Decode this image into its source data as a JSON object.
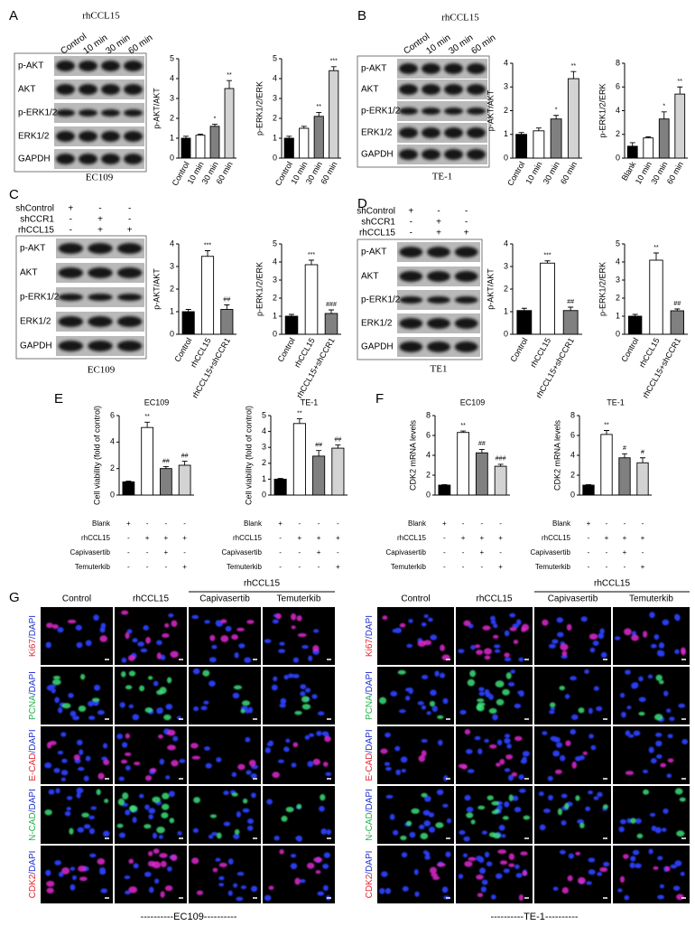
{
  "panel_letters": [
    "A",
    "B",
    "C",
    "D",
    "E",
    "F",
    "G"
  ],
  "blots": [
    {
      "treatment_header": "rhCCL15",
      "lanes": [
        "Control",
        "10 min",
        "30 min",
        "60 min"
      ],
      "bands": [
        "p-AKT",
        "AKT",
        "p-ERK1/2",
        "ERK1/2",
        "GAPDH"
      ],
      "cell_line": "EC109"
    },
    {
      "treatment_header": "rhCCL15",
      "lanes": [
        "Control",
        "10 min",
        "30 min",
        "60 min"
      ],
      "bands": [
        "p-AKT",
        "AKT",
        "p-ERK1/2",
        "ERK1/2",
        "GAPDH"
      ],
      "cell_line": "TE-1"
    },
    {
      "conditions": [
        {
          "name": "shControl",
          "signs": [
            "+",
            "-",
            "-"
          ]
        },
        {
          "name": "shCCR1",
          "signs": [
            "-",
            "+",
            "-"
          ]
        },
        {
          "name": "rhCCL15",
          "signs": [
            "-",
            "+",
            "+"
          ]
        }
      ],
      "bands": [
        "p-AKT",
        "AKT",
        "p-ERK1/2",
        "ERK1/2",
        "GAPDH"
      ],
      "cell_line": "EC109"
    },
    {
      "conditions": [
        {
          "name": "shControl",
          "signs": [
            "+",
            "-",
            "-"
          ]
        },
        {
          "name": "shCCR1",
          "signs": [
            "-",
            "+",
            "-"
          ]
        },
        {
          "name": "rhCCL15",
          "signs": [
            "-",
            "+",
            "+"
          ]
        }
      ],
      "bands": [
        "p-AKT",
        "AKT",
        "p-ERK1/2",
        "ERK1/2",
        "GAPDH"
      ],
      "cell_line": "TE1"
    }
  ],
  "chart_data": [
    {
      "type": "bar",
      "y_label": "p-AKT/AKT",
      "categories": [
        "Control",
        "10 min",
        "30 min",
        "60 min"
      ],
      "values": [
        1,
        1.15,
        1.6,
        3.5
      ],
      "errors": [
        0.1,
        0.05,
        0.1,
        0.4
      ],
      "colors": [
        "#000000",
        "#ffffff",
        "#808080",
        "#d3d3d3"
      ],
      "ylim": [
        0,
        5
      ],
      "yticks": [
        0,
        1,
        2,
        3,
        4,
        5
      ],
      "annotations": [
        {
          "index": 2,
          "text": "*"
        },
        {
          "index": 3,
          "text": "**"
        }
      ]
    },
    {
      "type": "bar",
      "y_label": "p-ERK1/2/ERK",
      "categories": [
        "Control",
        "10 min",
        "30 min",
        "60 min"
      ],
      "values": [
        1,
        1.5,
        2.1,
        4.4
      ],
      "errors": [
        0.1,
        0.1,
        0.2,
        0.2
      ],
      "colors": [
        "#000000",
        "#ffffff",
        "#808080",
        "#d3d3d3"
      ],
      "ylim": [
        0,
        5
      ],
      "yticks": [
        0,
        1,
        2,
        3,
        4,
        5
      ],
      "annotations": [
        {
          "index": 2,
          "text": "**"
        },
        {
          "index": 3,
          "text": "***"
        }
      ]
    },
    {
      "type": "bar",
      "y_label": "p-AKT/AKT",
      "categories": [
        "Control",
        "10 min",
        "30 min",
        "60 min"
      ],
      "values": [
        1,
        1.15,
        1.65,
        3.35
      ],
      "errors": [
        0.08,
        0.12,
        0.15,
        0.3
      ],
      "colors": [
        "#000000",
        "#ffffff",
        "#808080",
        "#d3d3d3"
      ],
      "ylim": [
        0,
        4
      ],
      "yticks": [
        0,
        1,
        2,
        3,
        4
      ],
      "annotations": [
        {
          "index": 2,
          "text": "*"
        },
        {
          "index": 3,
          "text": "**"
        }
      ]
    },
    {
      "type": "bar",
      "y_label": "p-ERK1/2/ERK",
      "categories": [
        "Blank",
        "10 min",
        "30 min",
        "60 min"
      ],
      "values": [
        1,
        1.7,
        3.3,
        5.4
      ],
      "errors": [
        0.3,
        0.1,
        0.6,
        0.6
      ],
      "colors": [
        "#000000",
        "#ffffff",
        "#808080",
        "#d3d3d3"
      ],
      "ylim": [
        0,
        8
      ],
      "yticks": [
        0,
        2,
        4,
        6,
        8
      ],
      "annotations": [
        {
          "index": 2,
          "text": "*"
        },
        {
          "index": 3,
          "text": "**"
        }
      ]
    },
    {
      "type": "bar",
      "y_label": "p-AKT/AKT",
      "categories": [
        "Control",
        "rhCCL15",
        "rhCCL15+shCCR1"
      ],
      "values": [
        1,
        3.45,
        1.1
      ],
      "errors": [
        0.1,
        0.25,
        0.2
      ],
      "colors": [
        "#000000",
        "#ffffff",
        "#808080"
      ],
      "ylim": [
        0,
        4
      ],
      "yticks": [
        0,
        1,
        2,
        3,
        4
      ],
      "annotations": [
        {
          "index": 1,
          "text": "***"
        },
        {
          "index": 2,
          "text": "##"
        }
      ]
    },
    {
      "type": "bar",
      "y_label": "p-ERK1/2/ERK",
      "categories": [
        "Control",
        "rhCCL15",
        "rhCCL15+shCCR1"
      ],
      "values": [
        1,
        3.85,
        1.15
      ],
      "errors": [
        0.1,
        0.25,
        0.2
      ],
      "colors": [
        "#000000",
        "#ffffff",
        "#808080"
      ],
      "ylim": [
        0,
        5
      ],
      "yticks": [
        0,
        1,
        2,
        3,
        4,
        5
      ],
      "annotations": [
        {
          "index": 1,
          "text": "***"
        },
        {
          "index": 2,
          "text": "###"
        }
      ]
    },
    {
      "type": "bar",
      "y_label": "p-AKT/AKT",
      "categories": [
        "Control",
        "rhCCL15",
        "rhCCL15+shCCR1"
      ],
      "values": [
        1.05,
        3.15,
        1.05
      ],
      "errors": [
        0.1,
        0.1,
        0.15
      ],
      "colors": [
        "#000000",
        "#ffffff",
        "#808080"
      ],
      "ylim": [
        0,
        4
      ],
      "yticks": [
        0,
        1,
        2,
        3,
        4
      ],
      "annotations": [
        {
          "index": 1,
          "text": "***"
        },
        {
          "index": 2,
          "text": "##"
        }
      ]
    },
    {
      "type": "bar",
      "y_label": "p-ERK1/2/ERK",
      "categories": [
        "Control",
        "rhCCL15",
        "rhCCL15+shCCR1"
      ],
      "values": [
        1,
        4.1,
        1.3
      ],
      "errors": [
        0.1,
        0.4,
        0.1
      ],
      "colors": [
        "#000000",
        "#ffffff",
        "#808080"
      ],
      "ylim": [
        0,
        5
      ],
      "yticks": [
        0,
        1,
        2,
        3,
        4,
        5
      ],
      "annotations": [
        {
          "index": 1,
          "text": "**"
        },
        {
          "index": 2,
          "text": "##"
        }
      ]
    },
    {
      "type": "bar",
      "title": "EC109",
      "y_label": "Cell viability  (fold of control)",
      "values": [
        1,
        5.1,
        2.0,
        2.25
      ],
      "errors": [
        0.05,
        0.4,
        0.15,
        0.3
      ],
      "colors": [
        "#000000",
        "#ffffff",
        "#808080",
        "#d3d3d3"
      ],
      "ylim": [
        0,
        6
      ],
      "yticks": [
        0,
        2,
        4,
        6
      ],
      "annotations": [
        {
          "index": 1,
          "text": "**"
        },
        {
          "index": 2,
          "text": "##"
        },
        {
          "index": 3,
          "text": "##"
        }
      ],
      "treatments": [
        {
          "name": "Blank",
          "signs": [
            "+",
            "-",
            "-",
            "-"
          ]
        },
        {
          "name": "rhCCL15",
          "signs": [
            "-",
            "+",
            "+",
            "+"
          ]
        },
        {
          "name": "Capivasertib",
          "signs": [
            "-",
            "-",
            "+",
            "-"
          ]
        },
        {
          "name": "Temuterkib",
          "signs": [
            "-",
            "-",
            "-",
            "+"
          ]
        }
      ]
    },
    {
      "type": "bar",
      "title": "TE-1",
      "y_label": "Cell viability  (fold of control)",
      "values": [
        1,
        4.5,
        2.45,
        2.95
      ],
      "errors": [
        0.05,
        0.3,
        0.35,
        0.2
      ],
      "colors": [
        "#000000",
        "#ffffff",
        "#808080",
        "#d3d3d3"
      ],
      "ylim": [
        0,
        5
      ],
      "yticks": [
        0,
        1,
        2,
        3,
        4,
        5
      ],
      "annotations": [
        {
          "index": 1,
          "text": "**"
        },
        {
          "index": 2,
          "text": "##"
        },
        {
          "index": 3,
          "text": "##"
        }
      ],
      "treatments": [
        {
          "name": "Blank",
          "signs": [
            "+",
            "-",
            "-",
            "-"
          ]
        },
        {
          "name": "rhCCL15",
          "signs": [
            "-",
            "+",
            "+",
            "+"
          ]
        },
        {
          "name": "Capivasertib",
          "signs": [
            "-",
            "-",
            "+",
            "-"
          ]
        },
        {
          "name": "Temuterkib",
          "signs": [
            "-",
            "-",
            "-",
            "+"
          ]
        }
      ]
    },
    {
      "type": "bar",
      "title": "EC109",
      "y_label": "CDK2 mRNA levels",
      "values": [
        1,
        6.3,
        4.25,
        2.9
      ],
      "errors": [
        0.05,
        0.15,
        0.35,
        0.2
      ],
      "colors": [
        "#000000",
        "#ffffff",
        "#808080",
        "#d3d3d3"
      ],
      "ylim": [
        0,
        8
      ],
      "yticks": [
        0,
        2,
        4,
        6,
        8
      ],
      "annotations": [
        {
          "index": 1,
          "text": "**"
        },
        {
          "index": 2,
          "text": "##"
        },
        {
          "index": 3,
          "text": "###"
        }
      ],
      "treatments": [
        {
          "name": "Blank",
          "signs": [
            "+",
            "-",
            "-",
            "-"
          ]
        },
        {
          "name": "rhCCL15",
          "signs": [
            "-",
            "+",
            "+",
            "+"
          ]
        },
        {
          "name": "Capivasertib",
          "signs": [
            "-",
            "-",
            "+",
            "-"
          ]
        },
        {
          "name": "Temuterkib",
          "signs": [
            "-",
            "-",
            "-",
            "+"
          ]
        }
      ]
    },
    {
      "type": "bar",
      "title": "TE-1",
      "y_label": "CDK2 mRNA levels",
      "values": [
        1,
        6.1,
        3.75,
        3.25
      ],
      "errors": [
        0.05,
        0.4,
        0.4,
        0.5
      ],
      "colors": [
        "#000000",
        "#ffffff",
        "#808080",
        "#d3d3d3"
      ],
      "ylim": [
        0,
        8
      ],
      "yticks": [
        0,
        2,
        4,
        6,
        8
      ],
      "annotations": [
        {
          "index": 1,
          "text": "**"
        },
        {
          "index": 2,
          "text": "#"
        },
        {
          "index": 3,
          "text": "#"
        }
      ],
      "treatments": [
        {
          "name": "Blank",
          "signs": [
            "+",
            "-",
            "-",
            "-"
          ]
        },
        {
          "name": "rhCCL15",
          "signs": [
            "-",
            "+",
            "+",
            "+"
          ]
        },
        {
          "name": "Capivasertib",
          "signs": [
            "-",
            "-",
            "+",
            "-"
          ]
        },
        {
          "name": "Temuterkib",
          "signs": [
            "-",
            "-",
            "-",
            "+"
          ]
        }
      ]
    }
  ],
  "microscopy": {
    "group_header": "rhCCL15",
    "columns": [
      "Control",
      "rhCCL15",
      "Capivasertib",
      "Temuterkib"
    ],
    "stains": [
      {
        "marker": "Ki67",
        "marker_color": "#e3262f",
        "counterstain": "/DAPI"
      },
      {
        "marker": "PCNA",
        "marker_color": "#22b14c",
        "counterstain": "/DAPI"
      },
      {
        "marker": "E-CAD",
        "marker_color": "#e3262f",
        "counterstain": "/DAPI"
      },
      {
        "marker": "N-CAD",
        "marker_color": "#22b14c",
        "counterstain": "/DAPI"
      },
      {
        "marker": "CDK2",
        "marker_color": "#e3262f",
        "counterstain": "/DAPI"
      }
    ],
    "cell_lines": [
      "----------EC109----------",
      "----------TE-1----------"
    ]
  }
}
